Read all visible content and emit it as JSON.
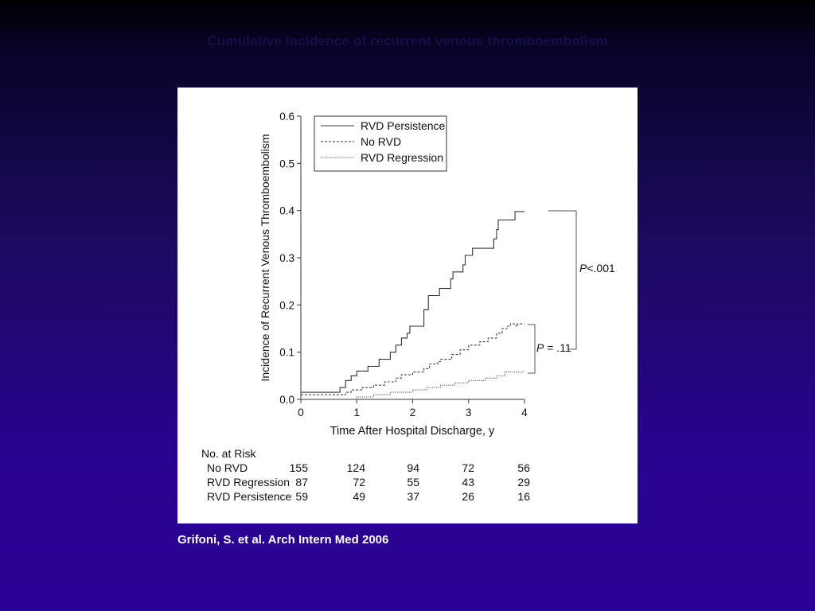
{
  "slide": {
    "title": "Cumulative incidence of recurrent venous thromboembolism",
    "citation": "Grifoni, S. et al. Arch Intern Med 2006"
  },
  "chart_data": {
    "type": "line",
    "subtype": "step",
    "xlabel": "Time After Hospital Discharge, y",
    "ylabel": "Incidence of Recurrent Venous Thromboembolism",
    "xlim": [
      0,
      4
    ],
    "ylim": [
      0,
      0.6
    ],
    "x_ticks": [
      "0",
      "1",
      "2",
      "3",
      "4"
    ],
    "y_ticks": [
      "0.0",
      "0.1",
      "0.2",
      "0.3",
      "0.4",
      "0.5",
      "0.6"
    ],
    "legend_position": "top-left",
    "series": [
      {
        "name": "RVD Persistence",
        "style": "solid",
        "points": [
          [
            0,
            0.015
          ],
          [
            0.7,
            0.015
          ],
          [
            0.7,
            0.025
          ],
          [
            0.8,
            0.025
          ],
          [
            0.8,
            0.04
          ],
          [
            0.9,
            0.04
          ],
          [
            0.9,
            0.05
          ],
          [
            1.0,
            0.05
          ],
          [
            1.0,
            0.06
          ],
          [
            1.2,
            0.06
          ],
          [
            1.2,
            0.07
          ],
          [
            1.4,
            0.07
          ],
          [
            1.4,
            0.085
          ],
          [
            1.6,
            0.085
          ],
          [
            1.6,
            0.1
          ],
          [
            1.7,
            0.1
          ],
          [
            1.7,
            0.115
          ],
          [
            1.8,
            0.115
          ],
          [
            1.8,
            0.13
          ],
          [
            1.9,
            0.13
          ],
          [
            1.9,
            0.14
          ],
          [
            1.95,
            0.14
          ],
          [
            1.95,
            0.155
          ],
          [
            2.2,
            0.155
          ],
          [
            2.2,
            0.19
          ],
          [
            2.28,
            0.19
          ],
          [
            2.28,
            0.22
          ],
          [
            2.48,
            0.22
          ],
          [
            2.48,
            0.235
          ],
          [
            2.68,
            0.235
          ],
          [
            2.68,
            0.255
          ],
          [
            2.72,
            0.255
          ],
          [
            2.72,
            0.27
          ],
          [
            2.9,
            0.27
          ],
          [
            2.9,
            0.285
          ],
          [
            2.94,
            0.285
          ],
          [
            2.94,
            0.305
          ],
          [
            3.07,
            0.305
          ],
          [
            3.07,
            0.32
          ],
          [
            3.12,
            0.32
          ],
          [
            3.12,
            0.32
          ],
          [
            3.45,
            0.32
          ],
          [
            3.45,
            0.34
          ],
          [
            3.5,
            0.34
          ],
          [
            3.5,
            0.36
          ],
          [
            3.53,
            0.36
          ],
          [
            3.53,
            0.38
          ],
          [
            3.83,
            0.38
          ],
          [
            3.83,
            0.398
          ],
          [
            4.0,
            0.398
          ]
        ]
      },
      {
        "name": "No RVD",
        "style": "dashed",
        "points": [
          [
            0,
            0.01
          ],
          [
            0.8,
            0.01
          ],
          [
            0.8,
            0.015
          ],
          [
            0.9,
            0.015
          ],
          [
            0.9,
            0.02
          ],
          [
            1.1,
            0.02
          ],
          [
            1.1,
            0.025
          ],
          [
            1.3,
            0.025
          ],
          [
            1.3,
            0.03
          ],
          [
            1.5,
            0.03
          ],
          [
            1.5,
            0.037
          ],
          [
            1.7,
            0.037
          ],
          [
            1.7,
            0.045
          ],
          [
            1.8,
            0.045
          ],
          [
            1.8,
            0.052
          ],
          [
            2.0,
            0.052
          ],
          [
            2.0,
            0.058
          ],
          [
            2.2,
            0.058
          ],
          [
            2.2,
            0.065
          ],
          [
            2.3,
            0.065
          ],
          [
            2.3,
            0.075
          ],
          [
            2.45,
            0.075
          ],
          [
            2.45,
            0.08
          ],
          [
            2.5,
            0.08
          ],
          [
            2.5,
            0.085
          ],
          [
            2.7,
            0.085
          ],
          [
            2.7,
            0.095
          ],
          [
            2.85,
            0.095
          ],
          [
            2.85,
            0.105
          ],
          [
            3.0,
            0.105
          ],
          [
            3.0,
            0.115
          ],
          [
            3.2,
            0.115
          ],
          [
            3.2,
            0.122
          ],
          [
            3.35,
            0.122
          ],
          [
            3.35,
            0.13
          ],
          [
            3.5,
            0.13
          ],
          [
            3.5,
            0.14
          ],
          [
            3.6,
            0.14
          ],
          [
            3.6,
            0.15
          ],
          [
            3.7,
            0.15
          ],
          [
            3.7,
            0.155
          ],
          [
            3.75,
            0.155
          ],
          [
            3.75,
            0.16
          ],
          [
            3.85,
            0.16
          ],
          [
            3.85,
            0.155
          ],
          [
            3.88,
            0.155
          ],
          [
            3.88,
            0.16
          ],
          [
            4.0,
            0.16
          ]
        ]
      },
      {
        "name": "RVD Regression",
        "style": "dotted",
        "points": [
          [
            0,
            0.0
          ],
          [
            1.0,
            0.0
          ],
          [
            1.0,
            0.005
          ],
          [
            1.3,
            0.005
          ],
          [
            1.3,
            0.01
          ],
          [
            1.6,
            0.01
          ],
          [
            1.6,
            0.015
          ],
          [
            2.0,
            0.015
          ],
          [
            2.0,
            0.02
          ],
          [
            2.25,
            0.02
          ],
          [
            2.25,
            0.025
          ],
          [
            2.5,
            0.025
          ],
          [
            2.5,
            0.03
          ],
          [
            2.75,
            0.03
          ],
          [
            2.75,
            0.035
          ],
          [
            3.0,
            0.035
          ],
          [
            3.0,
            0.04
          ],
          [
            3.3,
            0.04
          ],
          [
            3.3,
            0.045
          ],
          [
            3.5,
            0.045
          ],
          [
            3.5,
            0.05
          ],
          [
            3.65,
            0.05
          ],
          [
            3.65,
            0.058
          ],
          [
            4.0,
            0.058
          ]
        ]
      }
    ],
    "annotations": [
      {
        "prefix": "P",
        "text": "<.001"
      },
      {
        "prefix": "P",
        "text": " = .11"
      }
    ],
    "risk_table": {
      "title": "No. at Risk",
      "rows": [
        {
          "label": "No RVD",
          "values": [
            "155",
            "124",
            "94",
            "72",
            "56"
          ]
        },
        {
          "label": "RVD Regression",
          "values": [
            "87",
            "72",
            "55",
            "43",
            "29"
          ]
        },
        {
          "label": "RVD Persistence",
          "values": [
            "59",
            "49",
            "37",
            "26",
            "16"
          ]
        }
      ]
    }
  }
}
